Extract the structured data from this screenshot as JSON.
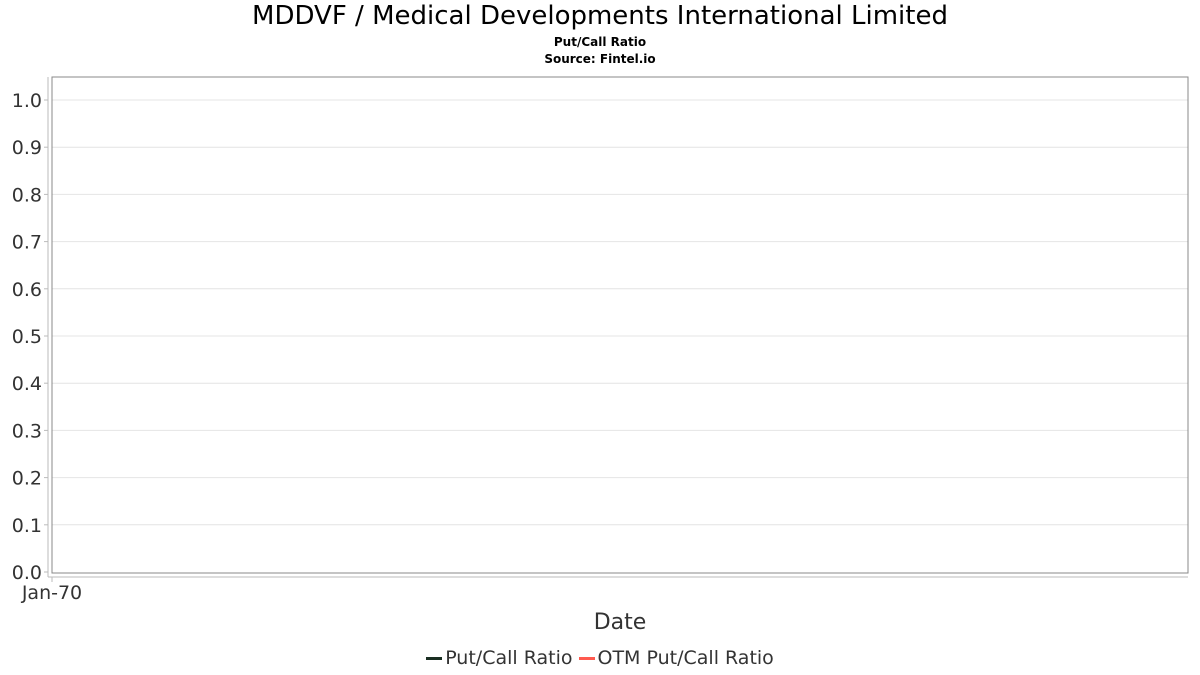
{
  "header": {
    "title": "MDDVF / Medical Developments International Limited",
    "subtitle": "Put/Call Ratio",
    "source": "Source: Fintel.io"
  },
  "chart_data": {
    "type": "line",
    "xlabel": "Date",
    "ylabel": "",
    "ylim": [
      0,
      1.0
    ],
    "y_ticks": [
      "0.0",
      "0.1",
      "0.2",
      "0.3",
      "0.4",
      "0.5",
      "0.6",
      "0.7",
      "0.8",
      "0.9",
      "1.0"
    ],
    "x_ticks": [
      "Jan-70"
    ],
    "grid": true,
    "legend_position": "bottom-center",
    "series": [
      {
        "name": "Put/Call Ratio",
        "color": "#1a2e22",
        "x": [],
        "values": []
      },
      {
        "name": "OTM Put/Call Ratio",
        "color": "#ff5a4f",
        "x": [],
        "values": []
      }
    ]
  }
}
